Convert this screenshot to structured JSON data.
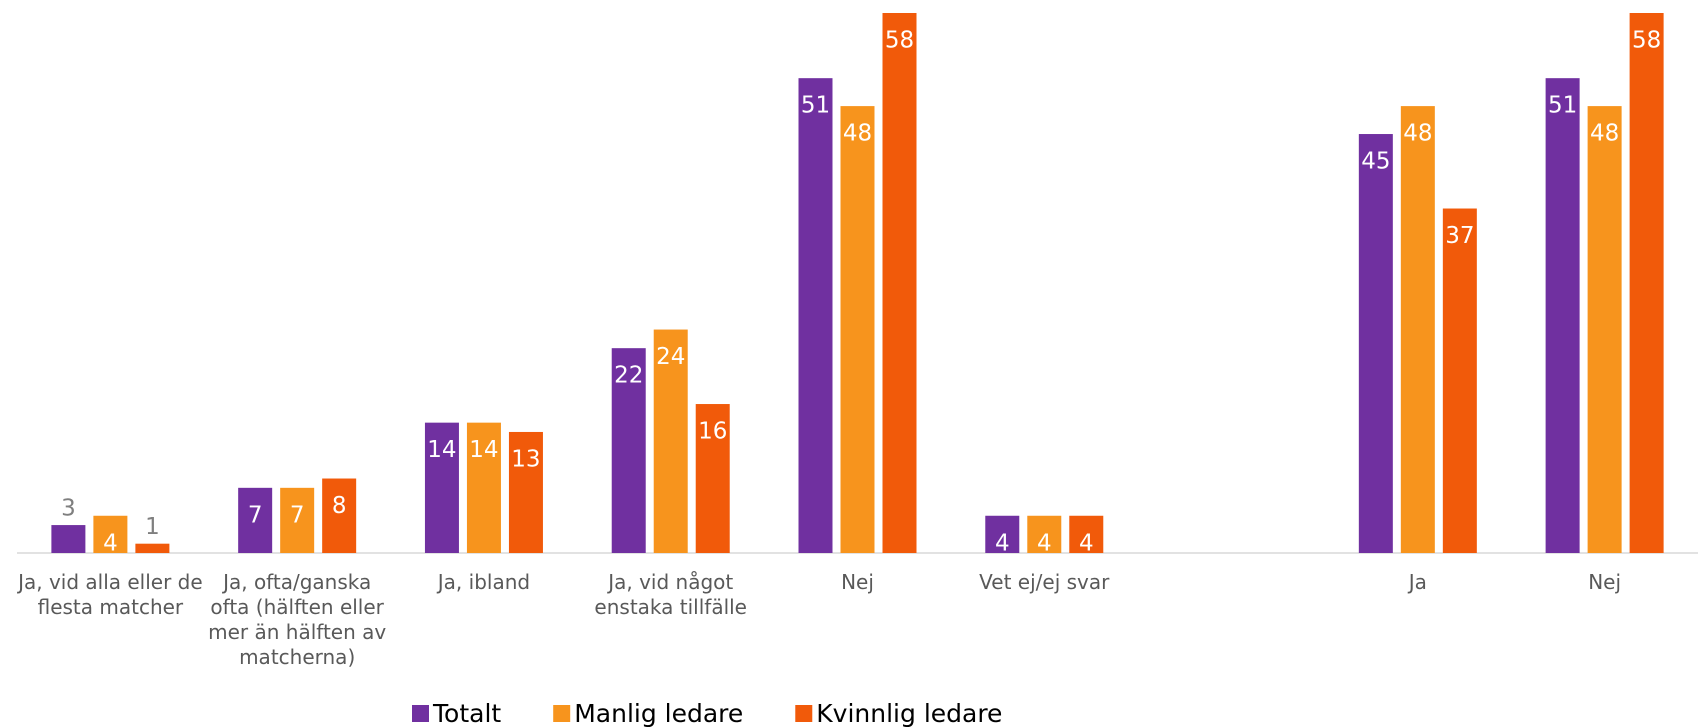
{
  "chart_data": {
    "type": "bar",
    "categories": [
      "Ja, vid alla eller de flesta matcher",
      "Ja, ofta/ganska ofta (hälften eller mer än hälften av matcherna)",
      "Ja, ibland",
      "Ja, vid något enstaka tillfälle",
      "Nej",
      "Vet ej/ej svar",
      null,
      "Ja",
      "Nej"
    ],
    "series": [
      {
        "name": "Totalt",
        "color": "#7030a0",
        "values": [
          3,
          7,
          14,
          22,
          51,
          4,
          null,
          45,
          51
        ]
      },
      {
        "name": "Manlig ledare",
        "color": "#f7941d",
        "values": [
          4,
          7,
          14,
          24,
          48,
          4,
          null,
          48,
          48
        ]
      },
      {
        "name": "Kvinnlig ledare",
        "color": "#f15a0a",
        "values": [
          1,
          8,
          13,
          16,
          58,
          4,
          null,
          37,
          58
        ]
      }
    ],
    "ylim": [
      0,
      58
    ]
  }
}
